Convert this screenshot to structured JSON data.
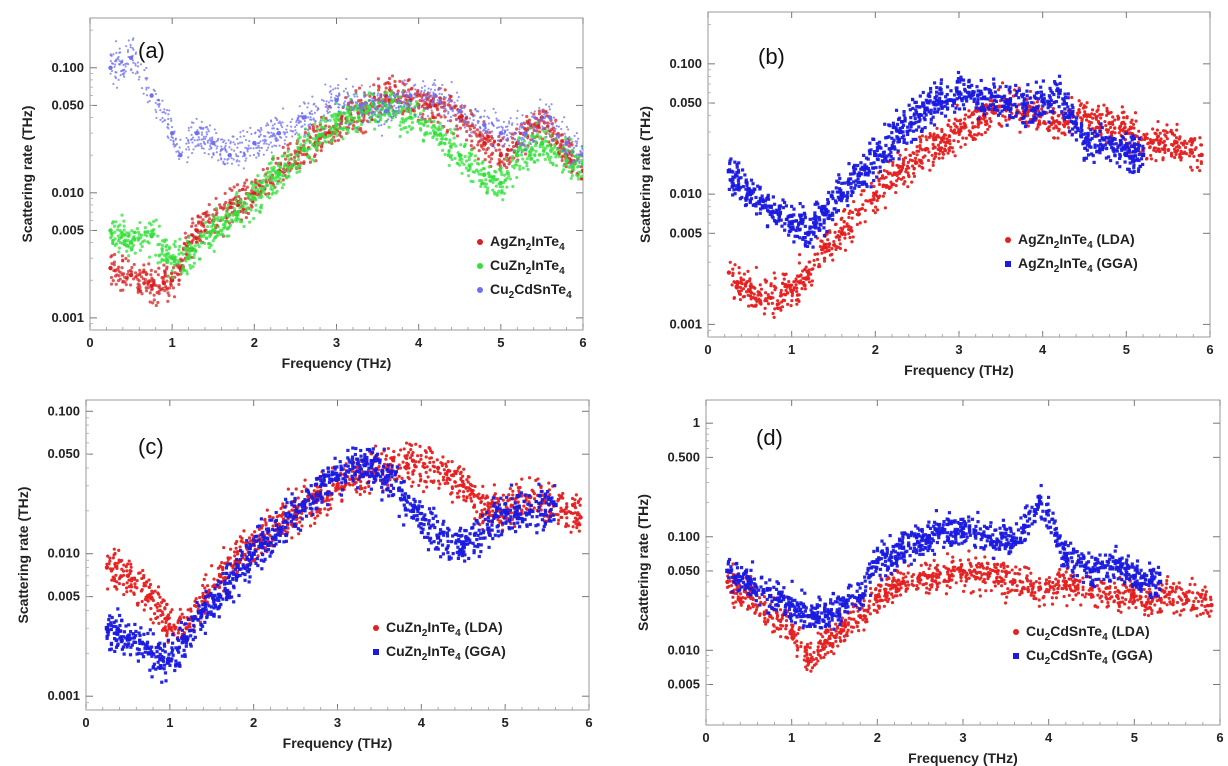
{
  "chart_data": [
    {
      "panel": "(a)",
      "type": "scatter",
      "xlabel": "Frequency (THz)",
      "ylabel": "Scattering rate (THz)",
      "xlim": [
        0,
        6
      ],
      "ylim": [
        0.0008,
        0.25
      ],
      "yscale": "log",
      "x_ticks": [
        "0",
        "1",
        "2",
        "3",
        "4",
        "5",
        "6"
      ],
      "y_ticks": [
        {
          "value": 0.001,
          "label": "0.001"
        },
        {
          "value": 0.005,
          "label": "0.005"
        },
        {
          "value": 0.01,
          "label": "0.010"
        },
        {
          "value": 0.05,
          "label": "0.050"
        },
        {
          "value": 0.1,
          "label": "0.100"
        }
      ],
      "legend_position": "bottom-right",
      "series": [
        {
          "name": "AgZn2InTe4",
          "label_main": "AgZn",
          "label_sub": "2",
          "label_rest": "InTe",
          "label_sub2": "4",
          "label_tail": "",
          "color": "#d62222",
          "marker": "circle",
          "x": [
            0.25,
            0.5,
            0.75,
            0.9,
            1.0,
            1.1,
            1.2,
            1.3,
            1.5,
            1.8,
            2.0,
            2.3,
            2.6,
            3.0,
            3.3,
            3.6,
            3.9,
            4.2,
            4.5,
            4.8,
            5.0,
            5.2,
            5.5,
            5.8,
            6.0
          ],
          "y": [
            0.0025,
            0.0022,
            0.0018,
            0.0019,
            0.002,
            0.0025,
            0.004,
            0.005,
            0.006,
            0.008,
            0.01,
            0.015,
            0.022,
            0.035,
            0.045,
            0.06,
            0.055,
            0.05,
            0.04,
            0.025,
            0.02,
            0.025,
            0.04,
            0.02,
            0.015
          ]
        },
        {
          "name": "CuZn2InTe4",
          "label_main": "CuZn",
          "label_sub": "2",
          "label_rest": "InTe",
          "label_sub2": "4",
          "label_tail": "",
          "color": "#33e03a",
          "marker": "circle",
          "x": [
            0.25,
            0.5,
            0.75,
            1.0,
            1.2,
            1.5,
            1.8,
            2.0,
            2.3,
            2.6,
            3.0,
            3.3,
            3.6,
            3.9,
            4.2,
            4.5,
            4.8,
            5.0,
            5.2,
            5.5,
            5.8,
            6.0
          ],
          "y": [
            0.005,
            0.004,
            0.0045,
            0.003,
            0.003,
            0.005,
            0.007,
            0.009,
            0.014,
            0.022,
            0.035,
            0.045,
            0.05,
            0.04,
            0.03,
            0.02,
            0.014,
            0.012,
            0.02,
            0.025,
            0.018,
            0.017
          ]
        },
        {
          "name": "Cu2CdSnTe4",
          "label_main": "Cu",
          "label_sub": "2",
          "label_rest": "CdSnTe",
          "label_sub2": "4",
          "label_tail": "",
          "color": "#6f6ff0",
          "marker": "circle",
          "x": [
            0.25,
            0.5,
            0.75,
            1.0,
            1.1,
            1.3,
            1.5,
            1.7,
            2.0,
            2.3,
            2.6,
            3.0,
            3.3,
            3.6,
            3.9,
            4.2,
            4.5,
            4.8,
            5.0,
            5.3,
            5.6,
            5.8,
            6.0
          ],
          "y": [
            0.1,
            0.12,
            0.06,
            0.03,
            0.02,
            0.03,
            0.025,
            0.02,
            0.025,
            0.03,
            0.04,
            0.055,
            0.05,
            0.045,
            0.06,
            0.06,
            0.045,
            0.035,
            0.03,
            0.03,
            0.04,
            0.025,
            0.02
          ]
        }
      ]
    },
    {
      "panel": "(b)",
      "type": "scatter",
      "xlabel": "Frequency (THz)",
      "ylabel": "Scattering rate (THz)",
      "xlim": [
        0,
        6
      ],
      "ylim": [
        0.0008,
        0.25
      ],
      "yscale": "log",
      "x_ticks": [
        "0",
        "1",
        "2",
        "3",
        "4",
        "5",
        "6"
      ],
      "y_ticks": [
        {
          "value": 0.001,
          "label": "0.001"
        },
        {
          "value": 0.005,
          "label": "0.005"
        },
        {
          "value": 0.01,
          "label": "0.010"
        },
        {
          "value": 0.05,
          "label": "0.050"
        },
        {
          "value": 0.1,
          "label": "0.100"
        }
      ],
      "legend_position": "bottom-right",
      "series": [
        {
          "name": "AgZn2InTe4 (LDA)",
          "label_main": "AgZn",
          "label_sub": "2",
          "label_rest": "InTe",
          "label_sub2": "4",
          "label_tail": " (LDA)",
          "color": "#e52020",
          "marker": "circle",
          "x": [
            0.25,
            0.5,
            0.75,
            1.0,
            1.2,
            1.4,
            1.6,
            1.8,
            2.0,
            2.3,
            2.6,
            3.0,
            3.3,
            3.6,
            3.9,
            4.2,
            4.5,
            4.8,
            5.0,
            5.3,
            5.6,
            5.9
          ],
          "y": [
            0.0025,
            0.0018,
            0.0016,
            0.0018,
            0.0025,
            0.004,
            0.005,
            0.007,
            0.01,
            0.015,
            0.022,
            0.03,
            0.04,
            0.05,
            0.04,
            0.035,
            0.04,
            0.035,
            0.03,
            0.025,
            0.025,
            0.02
          ]
        },
        {
          "name": "AgZn2InTe4 (GGA)",
          "label_main": "AgZn",
          "label_sub": "2",
          "label_rest": "InTe",
          "label_sub2": "4",
          "label_tail": " (GGA)",
          "color": "#1a1ae0",
          "marker": "square",
          "x": [
            0.25,
            0.5,
            0.75,
            1.0,
            1.2,
            1.4,
            1.6,
            1.8,
            2.0,
            2.3,
            2.6,
            3.0,
            3.3,
            3.6,
            3.9,
            4.2,
            4.5,
            4.8,
            5.0,
            5.2
          ],
          "y": [
            0.015,
            0.01,
            0.008,
            0.006,
            0.005,
            0.007,
            0.01,
            0.014,
            0.02,
            0.03,
            0.045,
            0.06,
            0.055,
            0.05,
            0.045,
            0.06,
            0.025,
            0.025,
            0.02,
            0.02
          ]
        }
      ]
    },
    {
      "panel": "(c)",
      "type": "scatter",
      "xlabel": "Frequency (THz)",
      "ylabel": "Scattering rate (THz)",
      "xlim": [
        0,
        6
      ],
      "ylim": [
        0.0008,
        0.12
      ],
      "yscale": "log",
      "x_ticks": [
        "0",
        "1",
        "2",
        "3",
        "4",
        "5",
        "6"
      ],
      "y_ticks": [
        {
          "value": 0.001,
          "label": "0.001"
        },
        {
          "value": 0.005,
          "label": "0.005"
        },
        {
          "value": 0.01,
          "label": "0.010"
        },
        {
          "value": 0.05,
          "label": "0.050"
        },
        {
          "value": 0.1,
          "label": "0.100"
        }
      ],
      "legend_position": "bottom-right",
      "series": [
        {
          "name": "CuZn2InTe4 (LDA)",
          "label_main": "CuZn",
          "label_sub": "2",
          "label_rest": "InTe",
          "label_sub2": "4",
          "label_tail": " (LDA)",
          "color": "#e52020",
          "marker": "circle",
          "x": [
            0.25,
            0.5,
            0.75,
            1.0,
            1.2,
            1.4,
            1.6,
            1.8,
            2.0,
            2.3,
            2.6,
            3.0,
            3.3,
            3.6,
            3.9,
            4.2,
            4.5,
            4.8,
            5.0,
            5.3,
            5.6,
            5.9
          ],
          "y": [
            0.008,
            0.007,
            0.005,
            0.003,
            0.003,
            0.005,
            0.007,
            0.009,
            0.012,
            0.016,
            0.022,
            0.03,
            0.035,
            0.04,
            0.045,
            0.04,
            0.03,
            0.02,
            0.02,
            0.025,
            0.022,
            0.018
          ]
        },
        {
          "name": "CuZn2InTe4 (GGA)",
          "label_main": "CuZn",
          "label_sub": "2",
          "label_rest": "InTe",
          "label_sub2": "4",
          "label_tail": " (GGA)",
          "color": "#1a1ae0",
          "marker": "square",
          "x": [
            0.25,
            0.5,
            0.75,
            1.0,
            1.2,
            1.4,
            1.6,
            1.8,
            2.0,
            2.3,
            2.6,
            3.0,
            3.3,
            3.6,
            3.9,
            4.2,
            4.5,
            4.8,
            5.0,
            5.3,
            5.6
          ],
          "y": [
            0.003,
            0.0025,
            0.002,
            0.0018,
            0.0025,
            0.004,
            0.005,
            0.007,
            0.01,
            0.015,
            0.022,
            0.035,
            0.045,
            0.035,
            0.02,
            0.013,
            0.012,
            0.015,
            0.02,
            0.02,
            0.022
          ]
        }
      ]
    },
    {
      "panel": "(d)",
      "type": "scatter",
      "xlabel": "Frequency (THz)",
      "ylabel": "Scattering rate (THz)",
      "xlim": [
        0,
        6
      ],
      "ylim": [
        0.0022,
        1.6
      ],
      "yscale": "log",
      "x_ticks": [
        "0",
        "1",
        "2",
        "3",
        "4",
        "5",
        "6"
      ],
      "y_ticks": [
        {
          "value": 0.005,
          "label": "0.005"
        },
        {
          "value": 0.01,
          "label": "0.010"
        },
        {
          "value": 0.05,
          "label": "0.050"
        },
        {
          "value": 0.1,
          "label": "0.100"
        },
        {
          "value": 0.5,
          "label": "0.500"
        },
        {
          "value": 1,
          "label": "1"
        }
      ],
      "legend_position": "bottom-right",
      "series": [
        {
          "name": "Cu2CdSnTe4 (LDA)",
          "label_main": "Cu",
          "label_sub": "2",
          "label_rest": "CdSnTe",
          "label_sub2": "4",
          "label_tail": " (LDA)",
          "color": "#e52020",
          "marker": "circle",
          "x": [
            0.25,
            0.5,
            0.75,
            1.0,
            1.2,
            1.4,
            1.6,
            1.8,
            2.0,
            2.3,
            2.6,
            3.0,
            3.3,
            3.6,
            3.9,
            4.2,
            4.5,
            4.8,
            5.0,
            5.3,
            5.6,
            5.9
          ],
          "y": [
            0.04,
            0.03,
            0.02,
            0.015,
            0.008,
            0.012,
            0.015,
            0.02,
            0.03,
            0.04,
            0.045,
            0.05,
            0.045,
            0.04,
            0.035,
            0.04,
            0.035,
            0.03,
            0.03,
            0.028,
            0.03,
            0.025
          ]
        },
        {
          "name": "Cu2CdSnTe4 (GGA)",
          "label_main": "Cu",
          "label_sub": "2",
          "label_rest": "CdSnTe",
          "label_sub2": "4",
          "label_tail": " (GGA)",
          "color": "#1a1ae0",
          "marker": "square",
          "x": [
            0.25,
            0.5,
            0.75,
            1.0,
            1.2,
            1.4,
            1.6,
            1.8,
            2.0,
            2.3,
            2.6,
            3.0,
            3.3,
            3.6,
            3.9,
            4.2,
            4.5,
            4.8,
            5.0,
            5.3
          ],
          "y": [
            0.05,
            0.04,
            0.03,
            0.025,
            0.02,
            0.02,
            0.025,
            0.03,
            0.06,
            0.08,
            0.1,
            0.12,
            0.1,
            0.09,
            0.2,
            0.07,
            0.05,
            0.06,
            0.045,
            0.04
          ]
        }
      ]
    }
  ]
}
